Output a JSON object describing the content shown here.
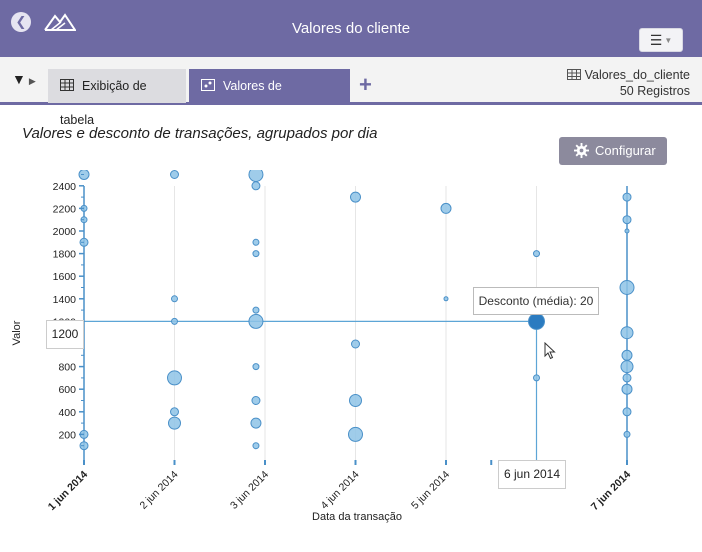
{
  "app": {
    "title": "Valores do cliente",
    "back_icon": "back-arrow-icon",
    "logo_icon": "mountain-logo-icon",
    "menu_icon": "hamburger-menu-icon"
  },
  "toolbar": {
    "filter_icon": "filter-icon",
    "tabs": [
      {
        "label": "Exibição de tabela",
        "icon": "table-icon",
        "active": false
      },
      {
        "label": "Valores de transações",
        "icon": "chart-icon",
        "active": true
      }
    ],
    "add_icon": "plus-icon",
    "dataset_name": "Valores_do_cliente",
    "dataset_count": "50 Registros"
  },
  "config_label": "Configurar",
  "colors": {
    "accent": "#6e6aa3",
    "point_fill": "#8ec3e6",
    "point_stroke": "#4a90c8",
    "point_highlight": "#2b7bc0",
    "guide": "#5da5d6"
  },
  "tooltip": "Desconto (média): 20",
  "crosshair": {
    "y_label": "1200",
    "x_label": "6 jun 2014"
  },
  "chart_data": {
    "type": "scatter",
    "title": "Valores e desconto de transações, agrupados por dia",
    "xlabel": "Data da transação",
    "ylabel": "Valor",
    "x_ticks": [
      {
        "label": "1 jun 2014",
        "bold": true,
        "value": 0
      },
      {
        "label": "2 jun 2014",
        "bold": false,
        "value": 1
      },
      {
        "label": "3 jun 2014",
        "bold": false,
        "value": 2
      },
      {
        "label": "4 jun 2014",
        "bold": false,
        "value": 3
      },
      {
        "label": "5 jun 2014",
        "bold": false,
        "value": 4
      },
      {
        "label": "7 jun 2014",
        "bold": true,
        "value": 6
      }
    ],
    "y_ticks": [
      "200",
      "400",
      "600",
      "800",
      "1000",
      "1200",
      "1400",
      "1600",
      "1800",
      "2000",
      "2200",
      "2400"
    ],
    "ylim": [
      0,
      2500
    ],
    "xlim": [
      "1 jun 2014",
      "7 jun 2014"
    ],
    "grid": true,
    "highlight": {
      "x": 5,
      "y": 1200,
      "discount": 20
    },
    "points": [
      {
        "x": 0,
        "y": 2500,
        "r": 5
      },
      {
        "x": 0,
        "y": 2200,
        "r": 3
      },
      {
        "x": 0,
        "y": 2100,
        "r": 3
      },
      {
        "x": 0,
        "y": 1900,
        "r": 4
      },
      {
        "x": 0,
        "y": 200,
        "r": 4
      },
      {
        "x": 0,
        "y": 100,
        "r": 4
      },
      {
        "x": 1,
        "y": 2500,
        "r": 4
      },
      {
        "x": 1,
        "y": 1400,
        "r": 3
      },
      {
        "x": 1,
        "y": 1200,
        "r": 3
      },
      {
        "x": 1,
        "y": 700,
        "r": 7
      },
      {
        "x": 1,
        "y": 400,
        "r": 4
      },
      {
        "x": 1,
        "y": 300,
        "r": 6
      },
      {
        "x": 1.9,
        "y": 2500,
        "r": 7
      },
      {
        "x": 1.9,
        "y": 2400,
        "r": 4
      },
      {
        "x": 1.9,
        "y": 1900,
        "r": 3
      },
      {
        "x": 1.9,
        "y": 1800,
        "r": 3
      },
      {
        "x": 1.9,
        "y": 1300,
        "r": 3
      },
      {
        "x": 1.9,
        "y": 1200,
        "r": 7
      },
      {
        "x": 1.9,
        "y": 800,
        "r": 3
      },
      {
        "x": 1.9,
        "y": 500,
        "r": 4
      },
      {
        "x": 1.9,
        "y": 300,
        "r": 5
      },
      {
        "x": 1.9,
        "y": 100,
        "r": 3
      },
      {
        "x": 3,
        "y": 2300,
        "r": 5
      },
      {
        "x": 3,
        "y": 1000,
        "r": 4
      },
      {
        "x": 3,
        "y": 500,
        "r": 6
      },
      {
        "x": 3,
        "y": 200,
        "r": 7
      },
      {
        "x": 4,
        "y": 2200,
        "r": 5
      },
      {
        "x": 4,
        "y": 1400,
        "r": 2
      },
      {
        "x": 5,
        "y": 1800,
        "r": 3
      },
      {
        "x": 5,
        "y": 1300,
        "r": 5
      },
      {
        "x": 5,
        "y": 1200,
        "r": 8,
        "hl": true
      },
      {
        "x": 5,
        "y": 700,
        "r": 3
      },
      {
        "x": 6,
        "y": 2300,
        "r": 4
      },
      {
        "x": 6,
        "y": 2100,
        "r": 4
      },
      {
        "x": 6,
        "y": 2000,
        "r": 2
      },
      {
        "x": 6,
        "y": 1500,
        "r": 7
      },
      {
        "x": 6,
        "y": 1100,
        "r": 6
      },
      {
        "x": 6,
        "y": 900,
        "r": 5
      },
      {
        "x": 6,
        "y": 800,
        "r": 6
      },
      {
        "x": 6,
        "y": 700,
        "r": 4
      },
      {
        "x": 6,
        "y": 600,
        "r": 5
      },
      {
        "x": 6,
        "y": 400,
        "r": 4
      },
      {
        "x": 6,
        "y": 200,
        "r": 3
      }
    ]
  }
}
